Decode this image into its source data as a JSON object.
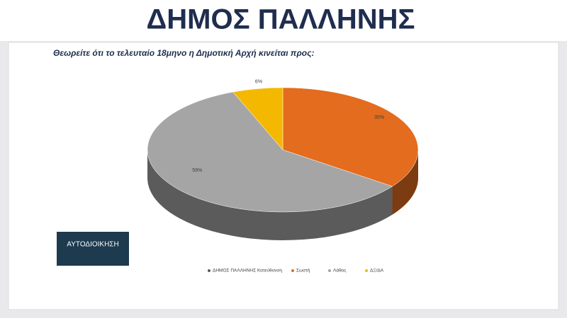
{
  "chart_data": {
    "type": "pie3d",
    "title": "ΔΗΜΟΣ ΠΑΛΛΗΝΗΣ",
    "subtitle": "Θεωρείτε ότι το τελευταίο 18μηνο η Δημοτική Αρχή κινείται προς:",
    "logo": "ΑΥΤΟΔΙΟΙΚΗΣΗ",
    "categories": [
      "Σωστή",
      "Λάθος",
      "ΔΞ/ΔΑ"
    ],
    "series": [
      {
        "name": "ΔΗΜΟΣ ΠΑΛΛΗΝΗΣ Κατεύθυνση",
        "color": "#595959",
        "values": [
          35,
          59,
          6
        ],
        "value_labels": [
          "35%",
          "59%",
          "6%"
        ]
      }
    ],
    "colors": [
      "#e36c1e",
      "#a5a5a5",
      "#f5b800"
    ]
  }
}
